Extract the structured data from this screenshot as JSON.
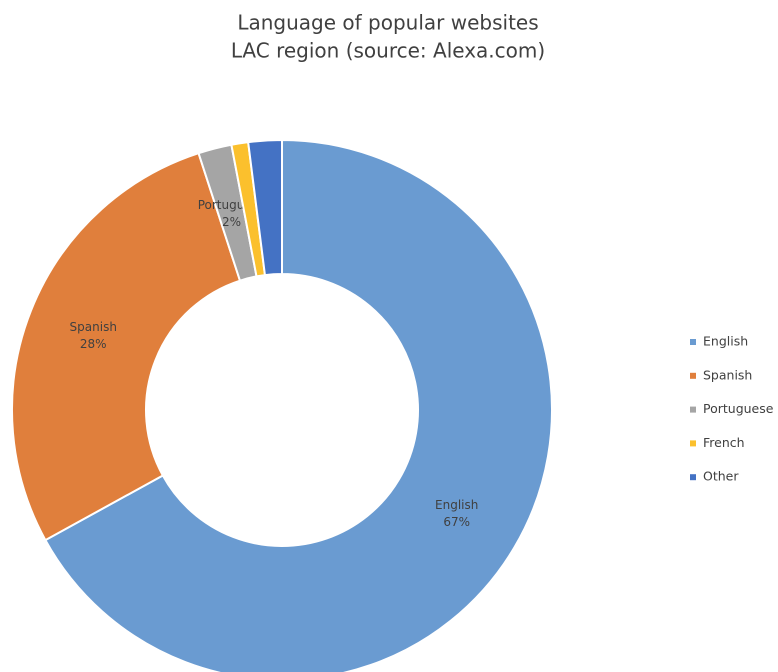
{
  "chart_data": {
    "type": "donut",
    "title": "Language of popular websites",
    "subtitle": "LAC region (source: Alexa.com)",
    "categories": [
      "English",
      "Spanish",
      "Portuguese",
      "French",
      "Other"
    ],
    "values": [
      67,
      28,
      2,
      1,
      2
    ],
    "value_labels": [
      "67%",
      "28%",
      "2%",
      null,
      null
    ],
    "colors": [
      "#6a9bd1",
      "#e07f3c",
      "#a5a5a5",
      "#fbc02d",
      "#4472c4"
    ],
    "legend": "right"
  }
}
